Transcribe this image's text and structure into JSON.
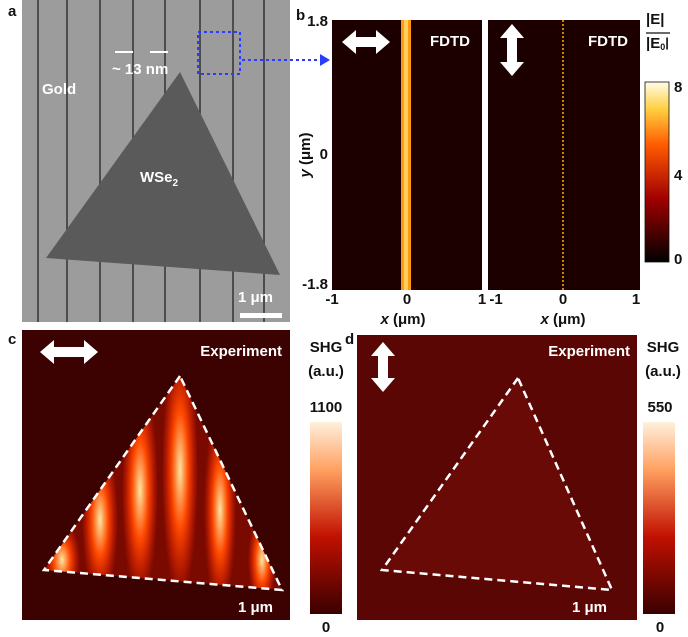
{
  "panel_a": {
    "label": "a",
    "substrate": "Gold",
    "flake": "WSe",
    "flake_subscript": "2",
    "gap": "~ 13 nm",
    "scale_bar": "1 μm"
  },
  "panel_b": {
    "label": "b",
    "method": "FDTD",
    "x_label": "x",
    "x_unit": "(μm)",
    "y_label": "y",
    "y_unit": "(μm)",
    "y_ticks": [
      "1.8",
      "0",
      "-1.8"
    ],
    "x_ticks": [
      "-1",
      "0",
      "1"
    ],
    "colorbar_title": "|E|",
    "colorbar_denominator": "|E",
    "colorbar_denominator_subscript": "0",
    "colorbar_ticks": [
      "8",
      "4",
      "0"
    ]
  },
  "panel_c": {
    "label": "c",
    "title": "Experiment",
    "colorbar_title": "SHG",
    "colorbar_unit": "(a.u.)",
    "colorbar_ticks": [
      "1100",
      "0"
    ],
    "scale_bar": "1 μm"
  },
  "panel_d": {
    "label": "d",
    "title": "Experiment",
    "colorbar_title": "SHG",
    "colorbar_unit": "(a.u.)",
    "colorbar_ticks": [
      "550",
      "0"
    ],
    "scale_bar": "1 μm"
  }
}
